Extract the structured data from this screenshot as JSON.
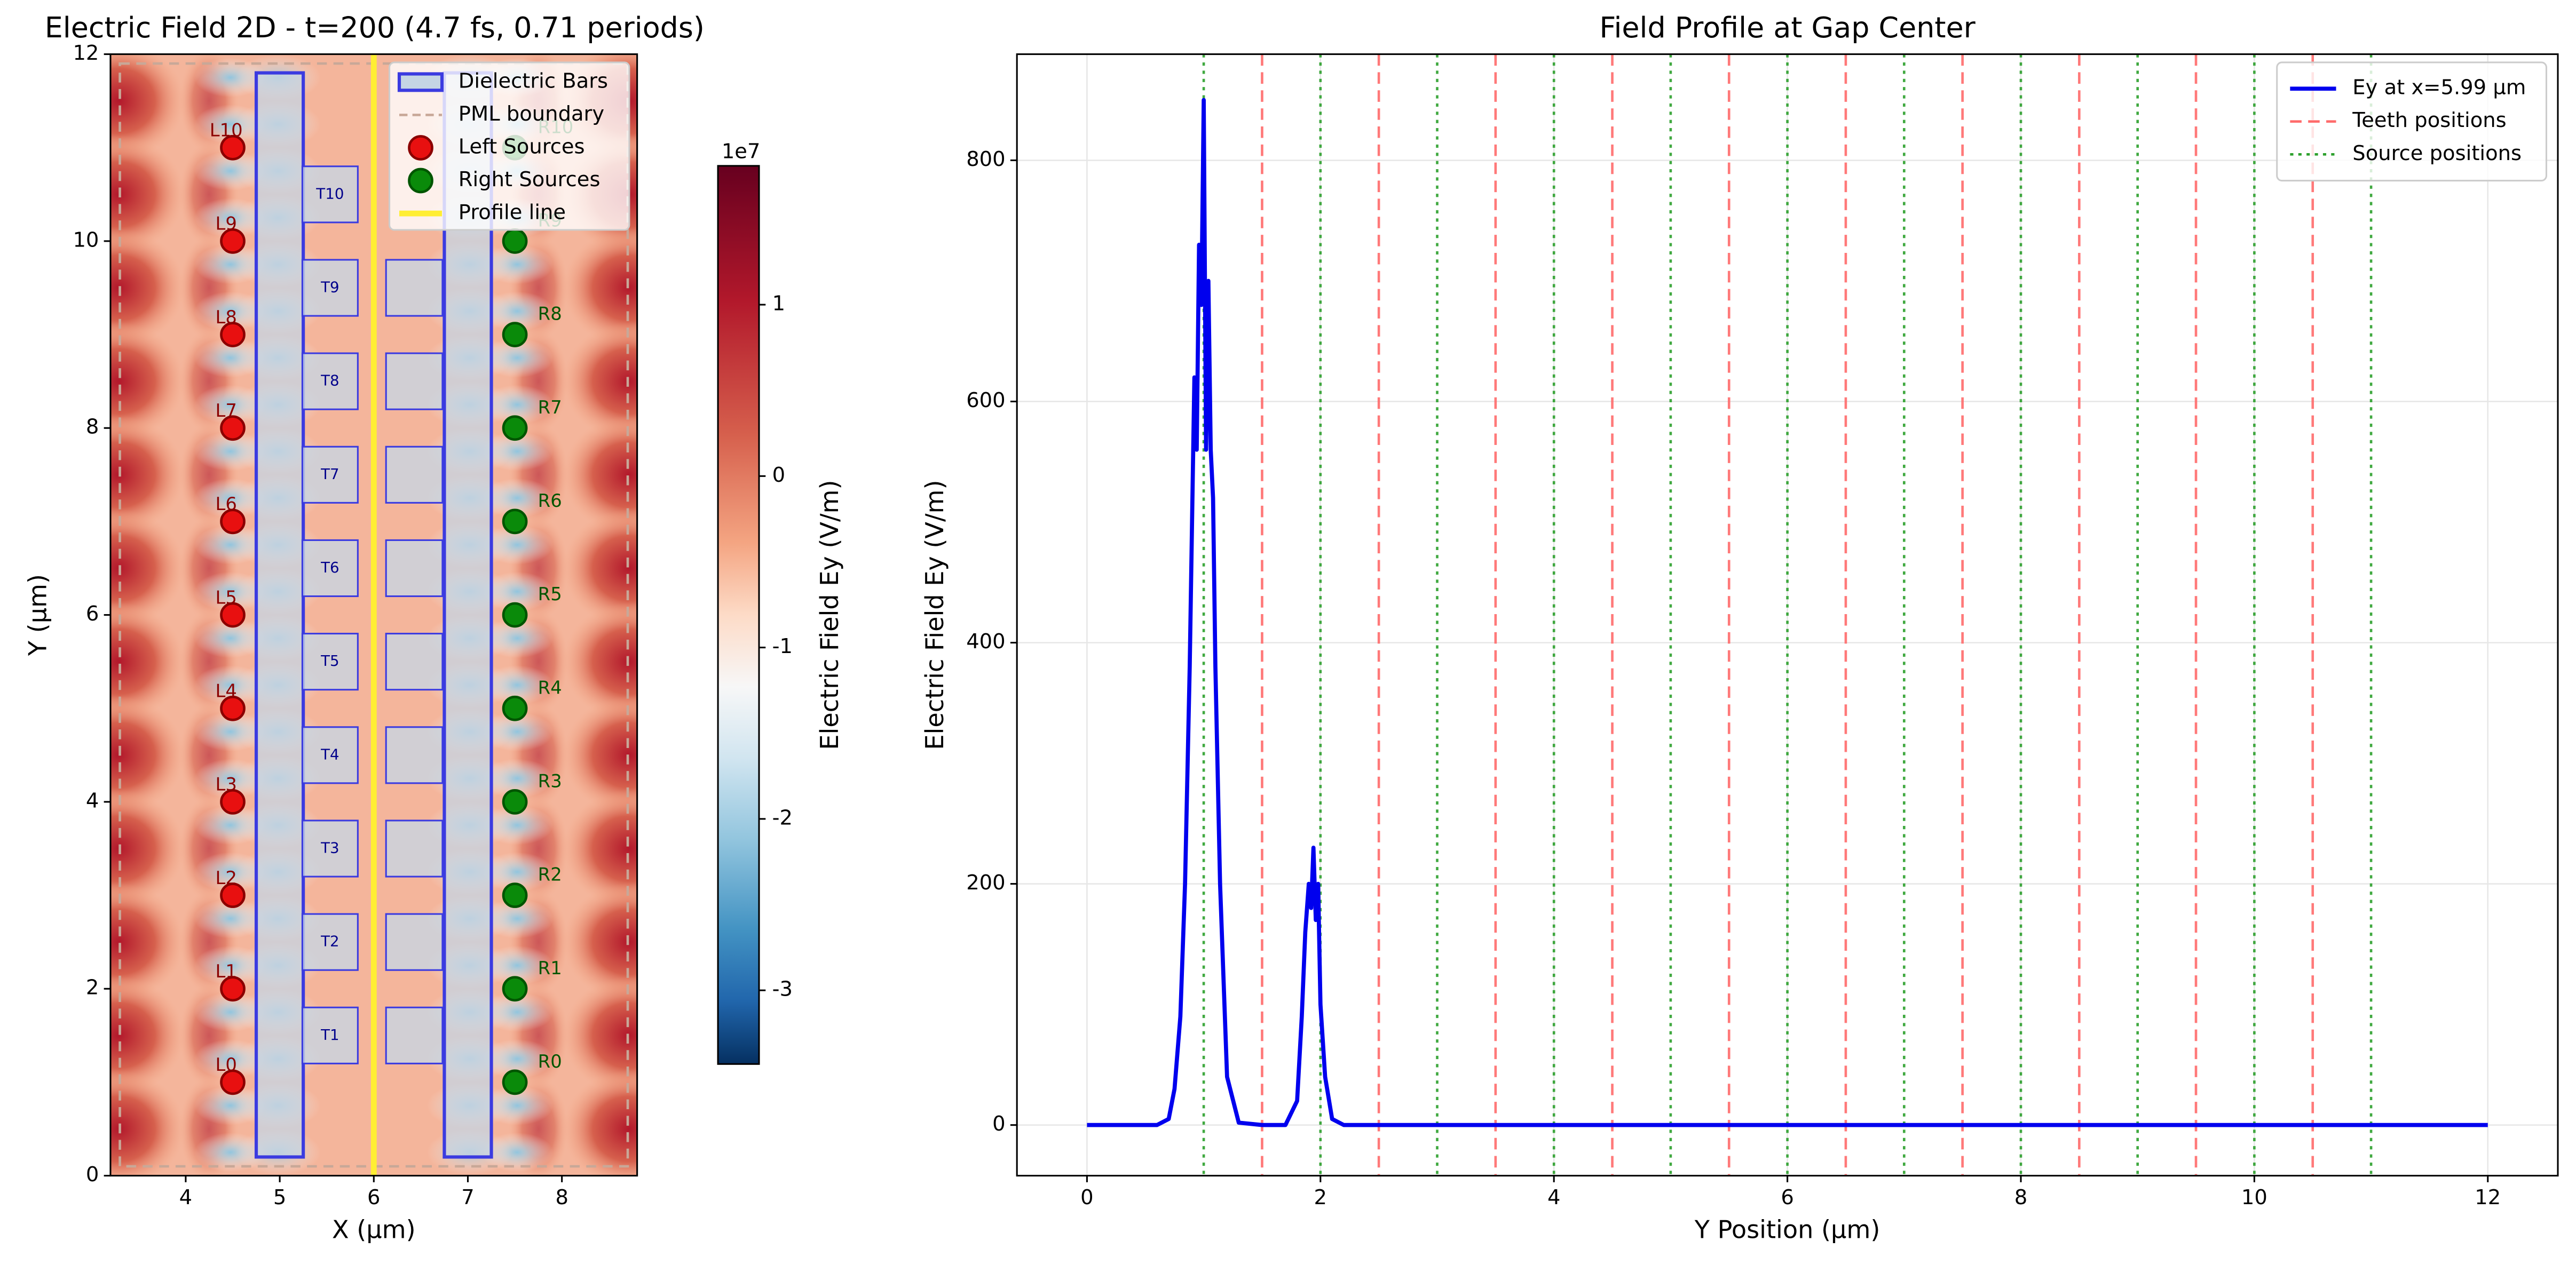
{
  "chart_data": [
    {
      "type": "field-map",
      "title": "Electric Field 2D - t=200 (4.7 fs, 0.71 periods)",
      "x_label": "X (µm)",
      "y_label": "Y (µm)",
      "xlim": [
        3.2,
        8.8
      ],
      "ylim": [
        0,
        12
      ],
      "xticks": [
        4,
        5,
        6,
        7,
        8
      ],
      "yticks": [
        0,
        2,
        4,
        6,
        8,
        10,
        12
      ],
      "colorbar": {
        "label": "Electric Field Ey (V/m)",
        "offset_label": "1e7",
        "lim": [
          -3.43,
          1.81
        ],
        "ticks": [
          -3,
          -2,
          -1,
          0,
          1
        ]
      },
      "dielectric_bars": {
        "name": "Dielectric Bars",
        "color": "#3b3be0",
        "rects": [
          {
            "x": [
              4.75,
              5.25
            ],
            "y": [
              0.2,
              11.8
            ]
          },
          {
            "x": [
              6.75,
              7.25
            ],
            "y": [
              0.2,
              11.8
            ]
          }
        ]
      },
      "pml_boundary": {
        "name": "PML boundary",
        "color": "#c8a898",
        "x": [
          3.3,
          8.7
        ],
        "y": [
          0.1,
          11.9
        ]
      },
      "left_sources": {
        "name": "Left Sources",
        "color": "#e81010",
        "x": 4.5,
        "y": [
          1,
          2,
          3,
          4,
          5,
          6,
          7,
          8,
          9,
          10,
          11
        ],
        "labels": [
          "L0",
          "L1",
          "L2",
          "L3",
          "L4",
          "L5",
          "L6",
          "L7",
          "L8",
          "L9",
          "L10"
        ]
      },
      "right_sources": {
        "name": "Right Sources",
        "color": "#0a8a0a",
        "x": 7.5,
        "y": [
          1,
          2,
          3,
          4,
          5,
          6,
          7,
          8,
          9,
          10,
          11
        ],
        "labels": [
          "R0",
          "R1",
          "R2",
          "R3",
          "R4",
          "R5",
          "R6",
          "R7",
          "R8",
          "R9",
          "R10"
        ]
      },
      "left_teeth": {
        "x": [
          5.24,
          5.83
        ],
        "y": [
          1.5,
          2.5,
          3.5,
          4.5,
          5.5,
          6.5,
          7.5,
          8.5,
          9.5,
          10.5
        ],
        "height": 0.6,
        "labels": [
          "T1",
          "T2",
          "T3",
          "T4",
          "T5",
          "T6",
          "T7",
          "T8",
          "T9",
          "T10"
        ]
      },
      "right_teeth": {
        "x": [
          6.13,
          6.73
        ],
        "y": [
          1.5,
          2.5,
          3.5,
          4.5,
          5.5,
          6.5,
          7.5,
          8.5,
          9.5
        ],
        "height": 0.6
      },
      "profile_line": {
        "name": "Profile line",
        "color": "#ffee33",
        "x": 6
      }
    },
    {
      "type": "line",
      "title": "Field Profile at Gap Center",
      "x_label": "Y Position (µm)",
      "y_label": "Electric Field Ey (V/m)",
      "xlim": [
        -0.6,
        12.6
      ],
      "ylim": [
        -42,
        888
      ],
      "xticks": [
        0,
        2,
        4,
        6,
        8,
        10,
        12
      ],
      "yticks": [
        0,
        200,
        400,
        600,
        800
      ],
      "grid": true,
      "legend": "upper right",
      "series": [
        {
          "name": "Ey at x=5.99 µm",
          "color": "#0000ee",
          "x": [
            0,
            0.6,
            0.7,
            0.75,
            0.8,
            0.84,
            0.88,
            0.9,
            0.92,
            0.94,
            0.96,
            0.98,
            1.0,
            1.02,
            1.04,
            1.06,
            1.08,
            1.1,
            1.14,
            1.2,
            1.3,
            1.5,
            1.7,
            1.8,
            1.84,
            1.87,
            1.9,
            1.92,
            1.94,
            1.96,
            1.98,
            2.0,
            2.04,
            2.1,
            2.2,
            12
          ],
          "values": [
            0,
            0,
            5,
            30,
            90,
            200,
            380,
            500,
            620,
            560,
            730,
            680,
            850,
            560,
            700,
            560,
            520,
            380,
            200,
            40,
            2,
            0,
            0,
            20,
            90,
            160,
            200,
            180,
            230,
            170,
            200,
            100,
            40,
            5,
            0,
            0
          ]
        }
      ],
      "vlines": [
        {
          "name": "Teeth positions",
          "color": "#ff6b6b",
          "style": "dashed",
          "x": [
            1.5,
            2.5,
            3.5,
            4.5,
            5.5,
            6.5,
            7.5,
            8.5,
            9.5,
            10.5
          ]
        },
        {
          "name": "Source positions",
          "color": "#2ca02c",
          "style": "dotted",
          "x": [
            1,
            2,
            3,
            4,
            5,
            6,
            7,
            8,
            9,
            10,
            11
          ]
        }
      ]
    }
  ]
}
